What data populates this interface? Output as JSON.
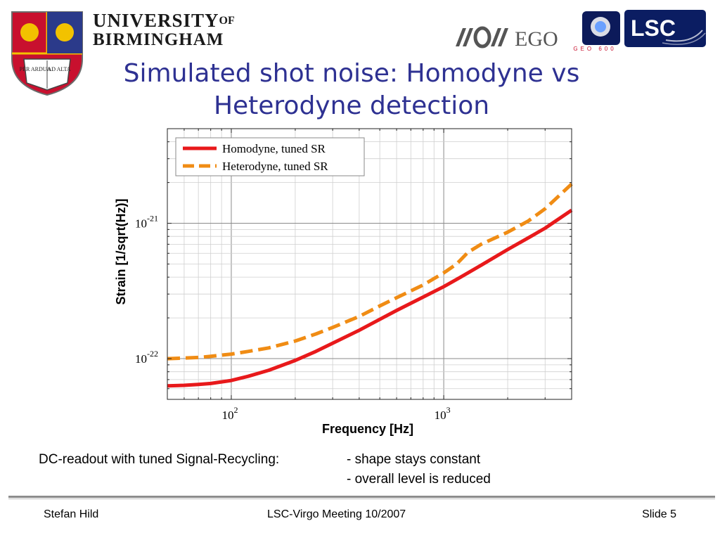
{
  "header": {
    "university_line1": "UNIVERSITY",
    "university_of": "OF",
    "university_line2": "BIRMINGHAM",
    "crest_motto_left": "PER ARDUA",
    "crest_motto_right": "AD ALTA",
    "ego_text": "EGO",
    "geo_text": "GEO 600",
    "lsc_text": "LSC"
  },
  "slide": {
    "title_line1": "Simulated shot noise: Homodyne vs",
    "title_line2": "Heterodyne detection",
    "note_left": "DC-readout with tuned Signal-Recycling:",
    "note_right_1": "- shape stays constant",
    "note_right_2": "- overall level is reduced"
  },
  "footer": {
    "author": "Stefan Hild",
    "meeting": "LSC-Virgo Meeting 10/2007",
    "slide_number": "Slide 5"
  },
  "colors": {
    "title": "#2e3192",
    "homodyne": "#e8191b",
    "heterodyne": "#f08c14"
  },
  "chart_data": {
    "type": "line",
    "xlabel": "Frequency [Hz]",
    "ylabel": "Strain [1/sqrt(Hz)]",
    "x_scale": "log",
    "y_scale": "log",
    "xlim": [
      50,
      4000
    ],
    "ylim": [
      5e-23,
      5e-21
    ],
    "x_ticks": [
      {
        "base": "10",
        "exp": "2"
      },
      {
        "base": "10",
        "exp": "3"
      }
    ],
    "y_ticks": [
      {
        "base": "10",
        "exp": "-21"
      },
      {
        "base": "10",
        "exp": "-22"
      }
    ],
    "grid": true,
    "legend_position": "top-left",
    "series": [
      {
        "name": "Homodyne, tuned SR",
        "style": "solid",
        "x": [
          50,
          60,
          70,
          80,
          100,
          120,
          150,
          200,
          250,
          300,
          400,
          500,
          600,
          800,
          1000,
          1200,
          1500,
          2000,
          2500,
          3000,
          4000
        ],
        "y": [
          6.3e-23,
          6.35e-23,
          6.45e-23,
          6.55e-23,
          6.9e-23,
          7.4e-23,
          8.2e-23,
          9.7e-23,
          1.13e-22,
          1.3e-22,
          1.62e-22,
          1.95e-22,
          2.27e-22,
          2.85e-22,
          3.4e-22,
          4e-22,
          4.9e-22,
          6.4e-22,
          7.8e-22,
          9.2e-22,
          1.25e-21
        ]
      },
      {
        "name": "Heterodyne, tuned SR",
        "style": "dashed",
        "x": [
          50,
          60,
          70,
          80,
          100,
          120,
          150,
          200,
          250,
          300,
          400,
          500,
          600,
          800,
          1000,
          1150,
          1300,
          1500,
          2000,
          2500,
          3000,
          4000
        ],
        "y": [
          1e-22,
          1.01e-22,
          1.02e-22,
          1.04e-22,
          1.08e-22,
          1.13e-22,
          1.2e-22,
          1.35e-22,
          1.52e-22,
          1.7e-22,
          2.05e-22,
          2.45e-22,
          2.82e-22,
          3.5e-22,
          4.3e-22,
          5e-22,
          6.1e-22,
          7e-22,
          8.6e-22,
          1.04e-21,
          1.28e-21,
          1.95e-21
        ]
      }
    ]
  }
}
